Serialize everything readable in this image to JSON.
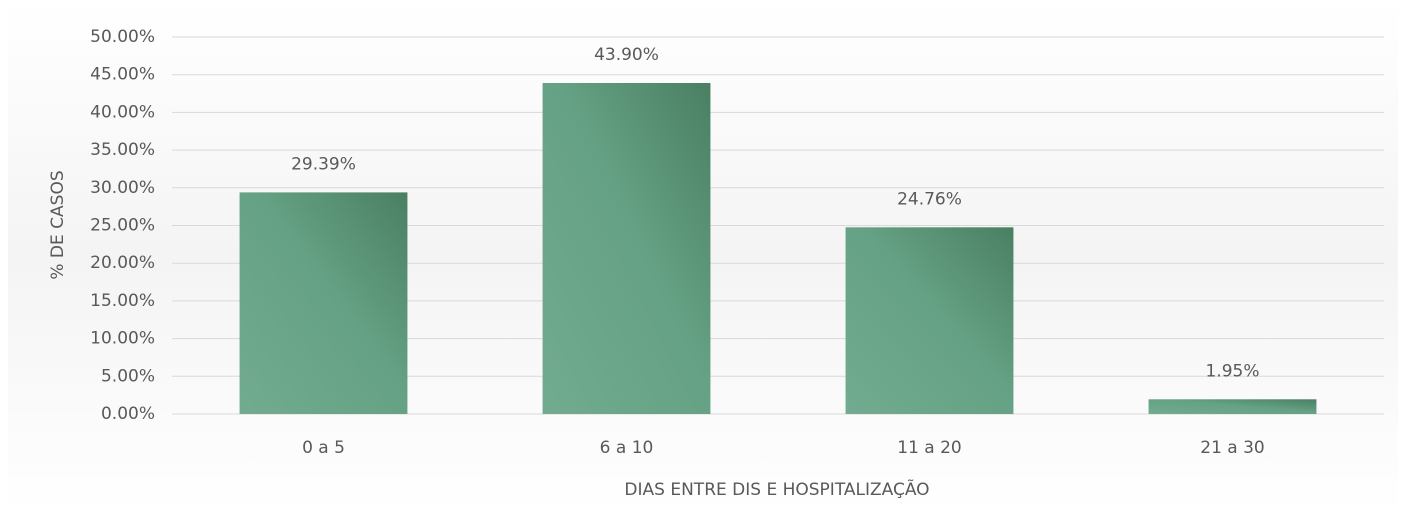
{
  "chart_data": {
    "type": "bar",
    "y_axis_label": "% DE CASOS",
    "x_axis_label": "DIAS ENTRE DIS E HOSPITALIZAÇÃO",
    "categories": [
      "0 a 5",
      "6 a 10",
      "11 a 20",
      "21 a 30"
    ],
    "values": [
      29.39,
      43.9,
      24.76,
      1.95
    ],
    "value_labels": [
      "29.39%",
      "43.90%",
      "24.76%",
      "1.95%"
    ],
    "color": "#5f9d7e",
    "ylim": [
      0,
      50
    ],
    "yticks": [
      {
        "value": 0,
        "label": "0.00%"
      },
      {
        "value": 5,
        "label": "5.00%"
      },
      {
        "value": 10,
        "label": "10.00%"
      },
      {
        "value": 15,
        "label": "15.00%"
      },
      {
        "value": 20,
        "label": "20.00%"
      },
      {
        "value": 25,
        "label": "25.00%"
      },
      {
        "value": 30,
        "label": "30.00%"
      },
      {
        "value": 35,
        "label": "35.00%"
      },
      {
        "value": 40,
        "label": "40.00%"
      },
      {
        "value": 45,
        "label": "45.00%"
      },
      {
        "value": 50,
        "label": "50.00%"
      }
    ],
    "grid": true
  }
}
